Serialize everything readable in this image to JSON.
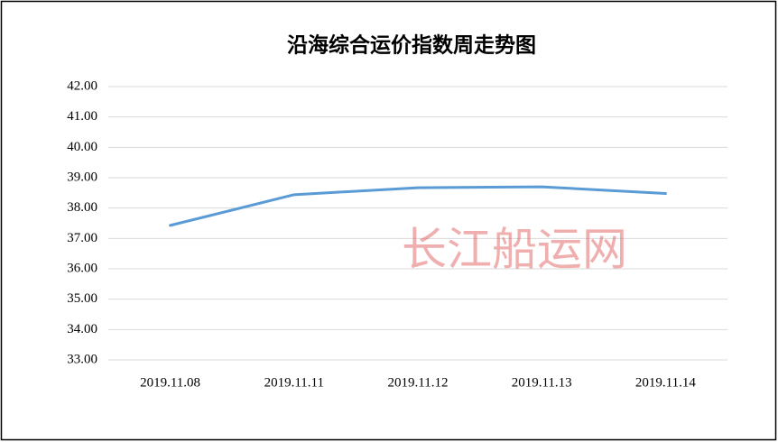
{
  "chart_data": {
    "type": "line",
    "title": "沿海综合运价指数周走势图",
    "watermark": "长江船运网",
    "categories": [
      "2019.11.08",
      "2019.11.11",
      "2019.11.12",
      "2019.11.13",
      "2019.11.14"
    ],
    "series": [
      {
        "name": "沿海综合运价指数",
        "color": "#5b9bd5",
        "values": [
          37.43,
          38.44,
          38.67,
          38.7,
          38.48
        ]
      }
    ],
    "ylim": [
      33,
      42
    ],
    "yticks": [
      {
        "value": 33,
        "label": "33.00"
      },
      {
        "value": 34,
        "label": "34.00"
      },
      {
        "value": 35,
        "label": "35.00"
      },
      {
        "value": 36,
        "label": "36.00"
      },
      {
        "value": 37,
        "label": "37.00"
      },
      {
        "value": 38,
        "label": "38.00"
      },
      {
        "value": 39,
        "label": "39.00"
      },
      {
        "value": 40,
        "label": "40.00"
      },
      {
        "value": 41,
        "label": "41.00"
      },
      {
        "value": 42,
        "label": "42.00"
      }
    ],
    "grid": true
  }
}
